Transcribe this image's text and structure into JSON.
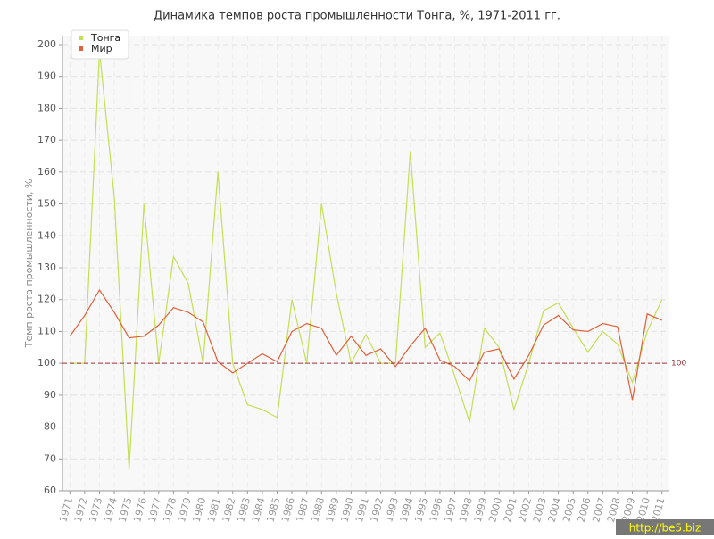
{
  "chart_data": {
    "type": "line",
    "title": "Динамика темпов роста промышленности Тонга, %, 1971-2011 гг.",
    "y_label": "Темп роста промышленности, %",
    "categories": [
      "1971",
      "1972",
      "1973",
      "1974",
      "1975",
      "1976",
      "1977",
      "1978",
      "1979",
      "1980",
      "1981",
      "1982",
      "1983",
      "1984",
      "1985",
      "1986",
      "1987",
      "1988",
      "1989",
      "1990",
      "1991",
      "1992",
      "1993",
      "1994",
      "1995",
      "1996",
      "1997",
      "1998",
      "1999",
      "2000",
      "2001",
      "2002",
      "2003",
      "2004",
      "2005",
      "2006",
      "2007",
      "2008",
      "2009",
      "2010",
      "2011"
    ],
    "series": [
      {
        "name": "Тонга",
        "color": "#c3df55",
        "values": [
          100,
          100,
          198,
          152,
          66.5,
          150,
          100,
          133.5,
          125,
          100,
          160,
          100,
          87,
          85.5,
          83,
          120,
          100,
          150,
          122,
          100,
          109,
          100,
          100,
          166.5,
          105,
          109.5,
          96,
          81.5,
          111,
          105,
          85.5,
          100,
          116.5,
          119,
          111,
          103.5,
          110,
          106,
          94,
          110,
          120
        ]
      },
      {
        "name": "Мир",
        "color": "#e0603a",
        "values": [
          108.5,
          115,
          123,
          116,
          108,
          108.5,
          112,
          117.5,
          116,
          113,
          100.5,
          97,
          100,
          103,
          100.5,
          110,
          112.5,
          111,
          102.5,
          108.5,
          102.5,
          104.5,
          99,
          105.5,
          111,
          101,
          99,
          94.5,
          103.5,
          104.5,
          95,
          102.5,
          112,
          115,
          110.5,
          110,
          112.5,
          111.5,
          88.5,
          115.5,
          113.5
        ]
      }
    ],
    "ylim": [
      60,
      200
    ],
    "yticks": [
      60,
      70,
      80,
      90,
      100,
      110,
      120,
      130,
      140,
      150,
      160,
      170,
      180,
      190,
      200
    ],
    "grid": true,
    "legend": "top-left",
    "reference_line": {
      "value": 100,
      "color": "#a0303a"
    },
    "watermark": "http://be5.biz"
  }
}
